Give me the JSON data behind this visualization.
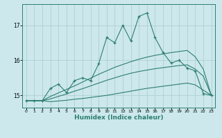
{
  "xlabel": "Humidex (Indice chaleur)",
  "bg_color": "#cce8ec",
  "line_color": "#2d7d72",
  "grid_color": "#aecfd4",
  "xlim": [
    -0.5,
    23.5
  ],
  "ylim": [
    14.65,
    17.6
  ],
  "yticks": [
    15,
    16,
    17
  ],
  "xticks": [
    0,
    1,
    2,
    3,
    4,
    5,
    6,
    7,
    8,
    9,
    10,
    11,
    12,
    13,
    14,
    15,
    16,
    17,
    18,
    19,
    20,
    21,
    22,
    23
  ],
  "series": {
    "line_bottom": [
      14.85,
      14.85,
      14.85,
      14.82,
      14.84,
      14.86,
      14.89,
      14.91,
      14.94,
      14.97,
      15.0,
      15.04,
      15.08,
      15.12,
      15.16,
      15.2,
      15.23,
      15.26,
      15.29,
      15.32,
      15.35,
      15.3,
      15.15,
      15.0
    ],
    "line_lower_mid": [
      14.85,
      14.85,
      14.85,
      14.9,
      14.97,
      15.04,
      15.12,
      15.19,
      15.27,
      15.35,
      15.43,
      15.5,
      15.57,
      15.63,
      15.68,
      15.72,
      15.76,
      15.79,
      15.82,
      15.85,
      15.87,
      15.75,
      15.55,
      15.0
    ],
    "line_upper_mid": [
      14.85,
      14.85,
      14.85,
      14.97,
      15.07,
      15.17,
      15.27,
      15.38,
      15.49,
      15.6,
      15.7,
      15.8,
      15.88,
      15.96,
      16.03,
      16.09,
      16.14,
      16.18,
      16.22,
      16.25,
      16.28,
      16.1,
      15.75,
      15.0
    ],
    "line_top": [
      14.85,
      14.85,
      14.85,
      15.2,
      15.32,
      15.08,
      15.42,
      15.5,
      15.42,
      15.9,
      16.65,
      16.5,
      17.0,
      16.55,
      17.25,
      17.35,
      16.65,
      16.22,
      15.92,
      16.0,
      15.78,
      15.7,
      15.05,
      15.0
    ]
  }
}
